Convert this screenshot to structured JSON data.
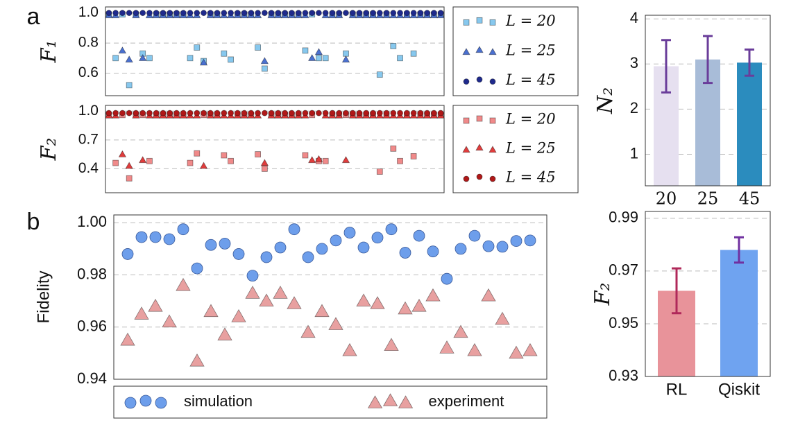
{
  "chart_data": [
    {
      "type": "scatter",
      "panel": "a",
      "ylabel": "F₁",
      "legend": "right",
      "x": [
        1,
        2,
        3,
        4,
        5,
        6,
        7,
        8,
        9,
        10,
        11,
        12,
        13,
        14,
        15,
        16,
        17,
        18,
        19,
        20,
        21,
        22,
        23,
        24,
        25,
        26,
        27,
        28,
        29,
        30,
        31,
        32,
        33,
        34,
        35,
        36,
        37,
        38,
        39,
        40,
        41,
        42,
        43,
        44,
        45,
        46,
        47,
        48,
        49,
        50
      ],
      "xlim": [
        0.5,
        50.5
      ],
      "ylim": [
        0.45,
        1.04
      ],
      "yticks": [
        0.6,
        0.8,
        {
          "value": 1,
          "label": "1.0"
        }
      ],
      "grid": true,
      "series": [
        {
          "name": "L = 20",
          "color": "#87c8ee",
          "marker": "square",
          "values": [
            0.99,
            0.7,
            0.99,
            0.52,
            0.99,
            0.73,
            0.7,
            0.99,
            0.99,
            0.99,
            0.99,
            0.99,
            0.7,
            0.77,
            0.68,
            0.99,
            0.99,
            0.73,
            0.69,
            0.99,
            0.99,
            0.99,
            0.77,
            0.63,
            0.99,
            0.99,
            0.99,
            0.99,
            0.99,
            0.75,
            0.99,
            0.7,
            0.7,
            0.99,
            0.99,
            0.73,
            0.99,
            0.99,
            0.99,
            0.99,
            0.59,
            0.99,
            0.78,
            0.7,
            0.99,
            0.73,
            0.99,
            0.99,
            0.99,
            0.99
          ]
        },
        {
          "name": "L = 25",
          "color": "#4a70d0",
          "marker": "triangle",
          "values": [
            0.985,
            0.985,
            0.75,
            0.69,
            0.985,
            0.7,
            0.985,
            0.985,
            0.985,
            0.985,
            0.985,
            0.985,
            0.985,
            0.985,
            0.67,
            0.985,
            0.985,
            0.985,
            0.985,
            0.985,
            0.985,
            0.985,
            0.985,
            0.68,
            0.985,
            0.985,
            0.985,
            0.985,
            0.985,
            0.985,
            0.7,
            0.74,
            0.985,
            0.985,
            0.985,
            0.69,
            0.985,
            0.985,
            0.985,
            0.985,
            0.985,
            0.985,
            0.985,
            0.985,
            0.985,
            0.985,
            0.985,
            0.985,
            0.985,
            0.985
          ]
        },
        {
          "name": "L = 45",
          "color": "#1f2a8c",
          "marker": "circle",
          "values": [
            1,
            1,
            1,
            1,
            1,
            1,
            1,
            1,
            1,
            1,
            1,
            1,
            1,
            1,
            1,
            1,
            1,
            1,
            1,
            1,
            1,
            1,
            1,
            1,
            1,
            1,
            1,
            1,
            1,
            1,
            1,
            1,
            1,
            1,
            1,
            1,
            1,
            1,
            1,
            1,
            1,
            1,
            1,
            1,
            1,
            1,
            1,
            1,
            1,
            1
          ]
        }
      ]
    },
    {
      "type": "scatter",
      "ylabel": "F₂",
      "legend": "right",
      "x": [
        1,
        2,
        3,
        4,
        5,
        6,
        7,
        8,
        9,
        10,
        11,
        12,
        13,
        14,
        15,
        16,
        17,
        18,
        19,
        20,
        21,
        22,
        23,
        24,
        25,
        26,
        27,
        28,
        29,
        30,
        31,
        32,
        33,
        34,
        35,
        36,
        37,
        38,
        39,
        40,
        41,
        42,
        43,
        44,
        45,
        46,
        47,
        48,
        49,
        50
      ],
      "xlim": [
        0.5,
        50.5
      ],
      "ylim": [
        0.15,
        1.06
      ],
      "yticks": [
        0.4,
        0.7,
        {
          "value": 1,
          "label": "1.0"
        }
      ],
      "grid": true,
      "series": [
        {
          "name": "L = 20",
          "color": "#f08a8a",
          "marker": "square",
          "values": [
            0.96,
            0.46,
            0.96,
            0.3,
            0.96,
            0.96,
            0.48,
            0.96,
            0.96,
            0.96,
            0.96,
            0.96,
            0.46,
            0.56,
            0.96,
            0.96,
            0.96,
            0.54,
            0.48,
            0.96,
            0.96,
            0.96,
            0.55,
            0.4,
            0.96,
            0.96,
            0.96,
            0.96,
            0.96,
            0.54,
            0.96,
            0.48,
            0.48,
            0.96,
            0.96,
            0.96,
            0.96,
            0.96,
            0.96,
            0.96,
            0.37,
            0.96,
            0.61,
            0.48,
            0.96,
            0.53,
            0.96,
            0.96,
            0.96,
            0.96
          ]
        },
        {
          "name": "L = 25",
          "color": "#e03c3c",
          "marker": "triangle",
          "values": [
            0.955,
            0.955,
            0.55,
            0.43,
            0.955,
            0.49,
            0.955,
            0.955,
            0.955,
            0.955,
            0.955,
            0.955,
            0.955,
            0.955,
            0.43,
            0.955,
            0.955,
            0.955,
            0.955,
            0.955,
            0.955,
            0.955,
            0.955,
            0.46,
            0.955,
            0.955,
            0.955,
            0.955,
            0.955,
            0.955,
            0.49,
            0.5,
            0.955,
            0.955,
            0.955,
            0.49,
            0.955,
            0.955,
            0.955,
            0.955,
            0.955,
            0.955,
            0.955,
            0.955,
            0.955,
            0.955,
            0.955,
            0.955,
            0.955,
            0.955
          ]
        },
        {
          "name": "L = 45",
          "color": "#b01818",
          "marker": "circle",
          "values": [
            0.98,
            0.98,
            0.98,
            0.98,
            0.98,
            0.98,
            0.98,
            0.98,
            0.98,
            0.98,
            0.98,
            0.98,
            0.98,
            0.98,
            0.98,
            0.98,
            0.98,
            0.98,
            0.98,
            0.98,
            0.98,
            0.98,
            0.98,
            0.98,
            0.98,
            0.98,
            0.98,
            0.98,
            0.98,
            0.98,
            0.98,
            0.98,
            0.98,
            0.98,
            0.98,
            0.98,
            0.98,
            0.98,
            0.98,
            0.98,
            0.98,
            0.98,
            0.98,
            0.98,
            0.98,
            0.98,
            0.98,
            0.98,
            0.98,
            0.98
          ]
        }
      ]
    },
    {
      "type": "bar",
      "ylabel": "N₂",
      "categories": [
        "20",
        "25",
        "45"
      ],
      "values": [
        2.95,
        3.1,
        3.03
      ],
      "errors": [
        0.58,
        0.52,
        0.29
      ],
      "colors": [
        "#e6e0f0",
        "#a8bcd8",
        "#2b8cbe"
      ],
      "error_color": "#6a3d9a",
      "ylim": [
        0.3,
        4.08
      ],
      "yticks": [
        1,
        2,
        3,
        4
      ],
      "grid": true
    },
    {
      "type": "scatter",
      "panel": "b",
      "ylabel": "Fidelity",
      "legend": "bottom",
      "x": [
        1,
        2,
        3,
        4,
        5,
        6,
        7,
        8,
        9,
        10,
        11,
        12,
        13,
        14,
        15,
        16,
        17,
        18,
        19,
        20,
        21,
        22,
        23,
        24,
        25,
        26,
        27,
        28,
        29,
        30
      ],
      "xlim": [
        0,
        31.2
      ],
      "ylim": [
        0.94,
        1.003
      ],
      "yticks": [
        0.94,
        0.96,
        0.98,
        {
          "value": 1,
          "label": "1.00"
        }
      ],
      "grid": true,
      "series": [
        {
          "name": "simulation",
          "color": "#6d9eeb",
          "marker": "circle",
          "values": [
            0.988,
            0.9945,
            0.9945,
            0.9937,
            0.9975,
            0.9825,
            0.9915,
            0.992,
            0.988,
            0.9797,
            0.9868,
            0.9905,
            0.9975,
            0.9868,
            0.99,
            0.9932,
            0.9962,
            0.9905,
            0.9943,
            0.9975,
            0.9885,
            0.995,
            0.989,
            0.9785,
            0.99,
            0.995,
            0.991,
            0.9908,
            0.993,
            0.9932
          ]
        },
        {
          "name": "experiment",
          "color": "#e8a0a0",
          "marker": "triangle",
          "values": [
            0.955,
            0.965,
            0.968,
            0.962,
            0.976,
            0.947,
            0.966,
            0.957,
            0.964,
            0.973,
            0.97,
            0.973,
            0.969,
            0.958,
            0.966,
            0.961,
            0.951,
            0.97,
            0.969,
            0.953,
            0.967,
            0.968,
            0.972,
            0.952,
            0.958,
            0.951,
            0.972,
            0.963,
            0.95,
            0.951
          ]
        }
      ]
    },
    {
      "type": "bar",
      "ylabel": "F₂",
      "categories": [
        "RL",
        "Qiskit"
      ],
      "values": [
        0.9625,
        0.978
      ],
      "errors": [
        0.0085,
        0.0048
      ],
      "colors": [
        "#e8939a",
        "#6fa3f0"
      ],
      "error_colors": [
        "#b0285a",
        "#7030a0"
      ],
      "ylim": [
        0.93,
        0.9926
      ],
      "yticks": [
        0.93,
        0.95,
        0.97,
        0.99
      ],
      "grid": true
    }
  ]
}
